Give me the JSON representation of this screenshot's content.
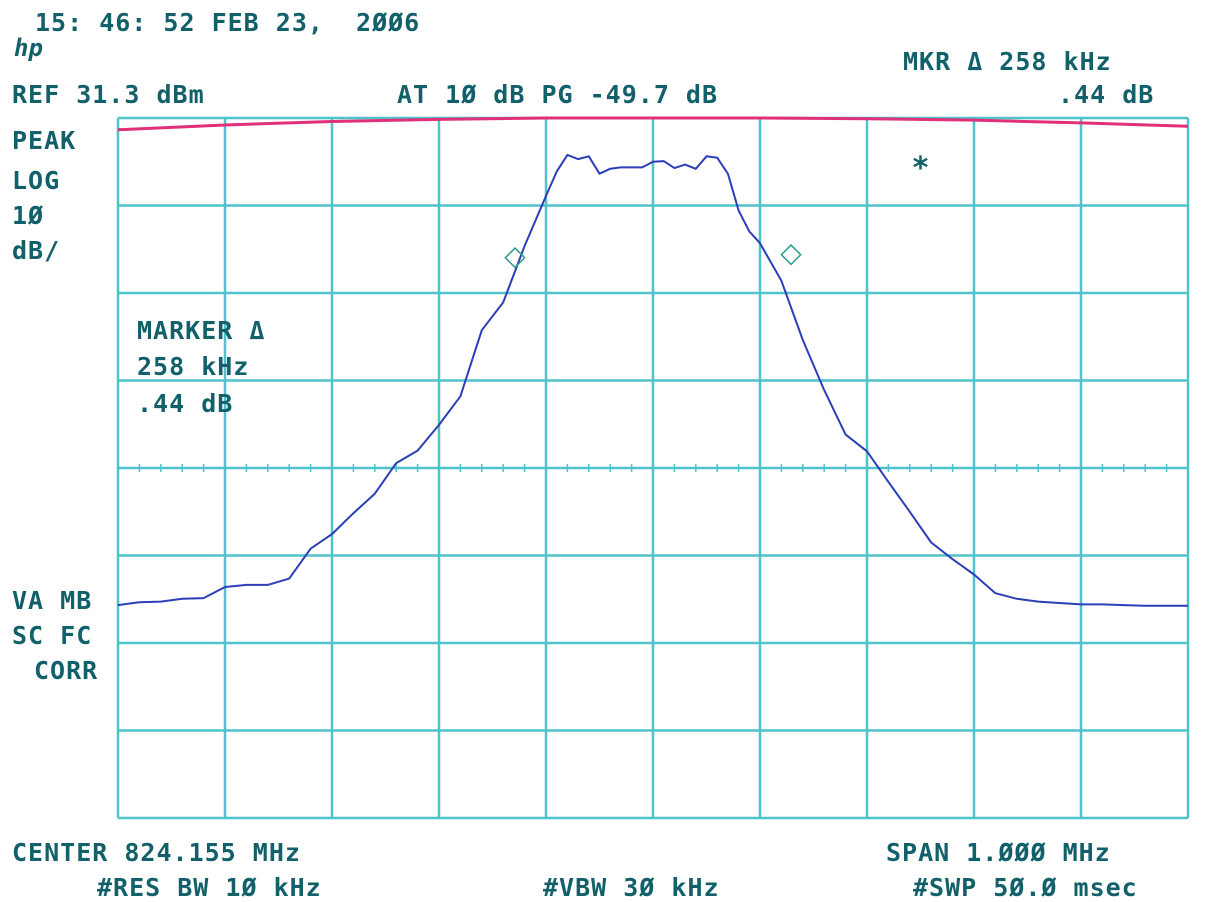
{
  "header": {
    "timestamp": "15: 46: 52 FEB 23,  2ØØ6",
    "logo": "hp",
    "marker_readout": "MKR Δ 258 kHz",
    "marker_readout_db": ".44 dB",
    "ref_level": "REF 31.3 dBm",
    "attenuation": "AT 1Ø dB PG -49.7 dB"
  },
  "left_annotations": {
    "detector": "PEAK",
    "scale_mode": "LOG",
    "scale_value": "1Ø",
    "scale_unit": "dB/",
    "va_mb": "VA MB",
    "sc_fc": "SC FC",
    "corr": "CORR"
  },
  "marker_box": {
    "title": "MARKER Δ",
    "freq": "258 kHz",
    "level": ".44 dB"
  },
  "footer": {
    "center": "CENTER 824.155 MHz",
    "span": "SPAN 1.ØØØ MHz",
    "rbw": "#RES BW 1Ø kHz",
    "vbw": "#VBW 3Ø kHz",
    "sweep": "#SWP 5Ø.Ø msec"
  },
  "colors": {
    "grid": "#4fc3cc",
    "trace": "#2a3fb8",
    "limit_line": "#e0307a",
    "text": "#12606a",
    "marker": "#2a9a8a"
  },
  "chart_data": {
    "type": "line",
    "x_range": [
      -0.5,
      0.5
    ],
    "ylim": [
      -69.3,
      31.3
    ],
    "grid": true,
    "series": [
      {
        "x": [
          -0.5,
          -0.48,
          -0.46,
          -0.44,
          -0.42,
          -0.4,
          -0.38,
          -0.36,
          -0.34,
          -0.32,
          -0.3,
          -0.28,
          -0.26,
          -0.24,
          -0.22,
          -0.2,
          -0.18,
          -0.16,
          -0.14,
          -0.12,
          -0.1,
          -0.09,
          -0.08,
          -0.07,
          -0.06,
          -0.05,
          -0.04,
          -0.03,
          -0.02,
          -0.01,
          0,
          0.01,
          0.02,
          0.03,
          0.04,
          0.05,
          0.06,
          0.07,
          0.08,
          0.09,
          0.1,
          0.12,
          0.14,
          0.16,
          0.18,
          0.2,
          0.22,
          0.24,
          0.26,
          0.28,
          0.3,
          0.32,
          0.34,
          0.36,
          0.38,
          0.4,
          0.42,
          0.44,
          0.46,
          0.48,
          0.5
        ],
        "y": [
          -38.7,
          -38.3,
          -38.2,
          -37.8,
          -37.7,
          -36.1,
          -35.8,
          -35.8,
          -34.9,
          -30.6,
          -28.5,
          -25.5,
          -22.7,
          -18.3,
          -16.5,
          -12.8,
          -8.7,
          0.8,
          4.8,
          12.9,
          20.1,
          23.6,
          26.0,
          25.4,
          25.8,
          23.3,
          24.0,
          24.2,
          24.2,
          24.2,
          25.0,
          25.1,
          24.1,
          24.6,
          24.0,
          25.8,
          25.6,
          23.3,
          18.0,
          15.0,
          13.3,
          7.9,
          -0.6,
          -7.8,
          -14.2,
          -16.6,
          -21.0,
          -25.3,
          -29.7,
          -32.1,
          -34.3,
          -37.0,
          -37.8,
          -38.2,
          -38.4,
          -38.6,
          -38.6,
          -38.7,
          -38.8,
          -38.8,
          -38.8
        ]
      },
      {
        "x": [
          -0.5,
          -0.4,
          -0.3,
          -0.2,
          -0.1,
          0,
          0.1,
          0.2,
          0.3,
          0.4,
          0.5
        ],
        "y": [
          29.6,
          30.3,
          30.8,
          31.1,
          31.3,
          31.3,
          31.3,
          31.2,
          31.0,
          30.6,
          30.1
        ]
      }
    ],
    "markers": [
      {
        "symbol": "◇",
        "x": -0.129,
        "y": 11.5
      },
      {
        "symbol": "◇",
        "x": 0.129,
        "y": 11.9
      },
      {
        "symbol": "*",
        "x": 0.25,
        "y": 24.0
      }
    ]
  }
}
